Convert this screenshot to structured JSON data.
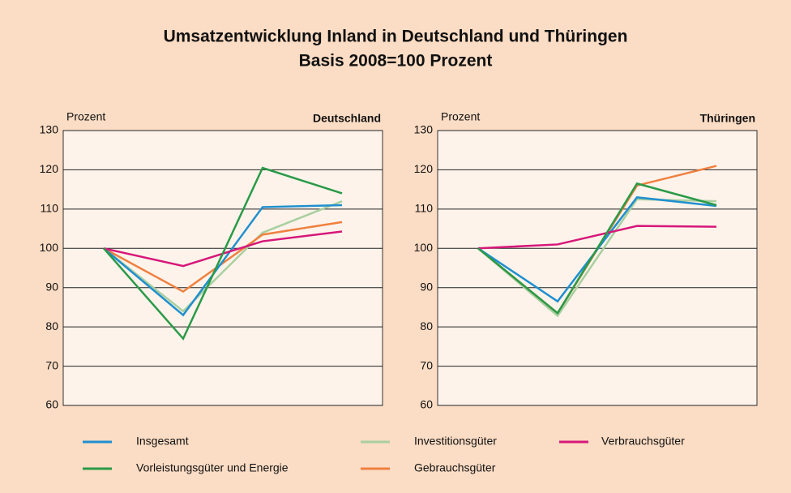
{
  "header": {
    "title": "Umsatzentwicklung Inland in Deutschland und Thüringen",
    "subtitle": "Basis 2008=100 Prozent"
  },
  "chart_data": [
    {
      "type": "line",
      "title": "Deutschland",
      "ylabel": "Prozent",
      "categories": [
        null,
        null,
        null,
        null
      ],
      "ylim": [
        60,
        130
      ],
      "yticks": [
        60,
        70,
        80,
        90,
        100,
        110,
        120,
        130
      ],
      "grid": true,
      "series": [
        {
          "name": "Insgesamt",
          "color": "#1f8fcf",
          "values": [
            100,
            83,
            110.5,
            111
          ]
        },
        {
          "name": "Investitionsgüter",
          "color": "#a9cfa0",
          "values": [
            100,
            84,
            104,
            112
          ]
        },
        {
          "name": "Verbrauchsgüter",
          "color": "#d6177a",
          "values": [
            100,
            95.5,
            101.8,
            104.3
          ]
        },
        {
          "name": "Vorleistungsgüter und Energie",
          "color": "#2a9a48",
          "values": [
            100,
            77,
            120.5,
            114
          ]
        },
        {
          "name": "Gebrauchsgüter",
          "color": "#ef8040",
          "values": [
            100,
            89,
            103.5,
            106.7
          ]
        }
      ]
    },
    {
      "type": "line",
      "title": "Thüringen",
      "ylabel": "Prozent",
      "categories": [
        null,
        null,
        null,
        null
      ],
      "ylim": [
        60,
        130
      ],
      "yticks": [
        60,
        70,
        80,
        90,
        100,
        110,
        120,
        130
      ],
      "grid": true,
      "series": [
        {
          "color": "#1f8fcf",
          "values": [
            100,
            86.5,
            113,
            110.8
          ]
        },
        {
          "color": "#a9cfa0",
          "values": [
            100,
            82.8,
            112.5,
            112
          ]
        },
        {
          "color": "#d6177a",
          "values": [
            100,
            101,
            105.7,
            105.5
          ]
        },
        {
          "color": "#2a9a48",
          "values": [
            100,
            83.5,
            116.5,
            111
          ]
        },
        {
          "color": "#ef8040",
          "values": [
            100,
            83.5,
            116,
            121
          ]
        }
      ]
    }
  ]
}
